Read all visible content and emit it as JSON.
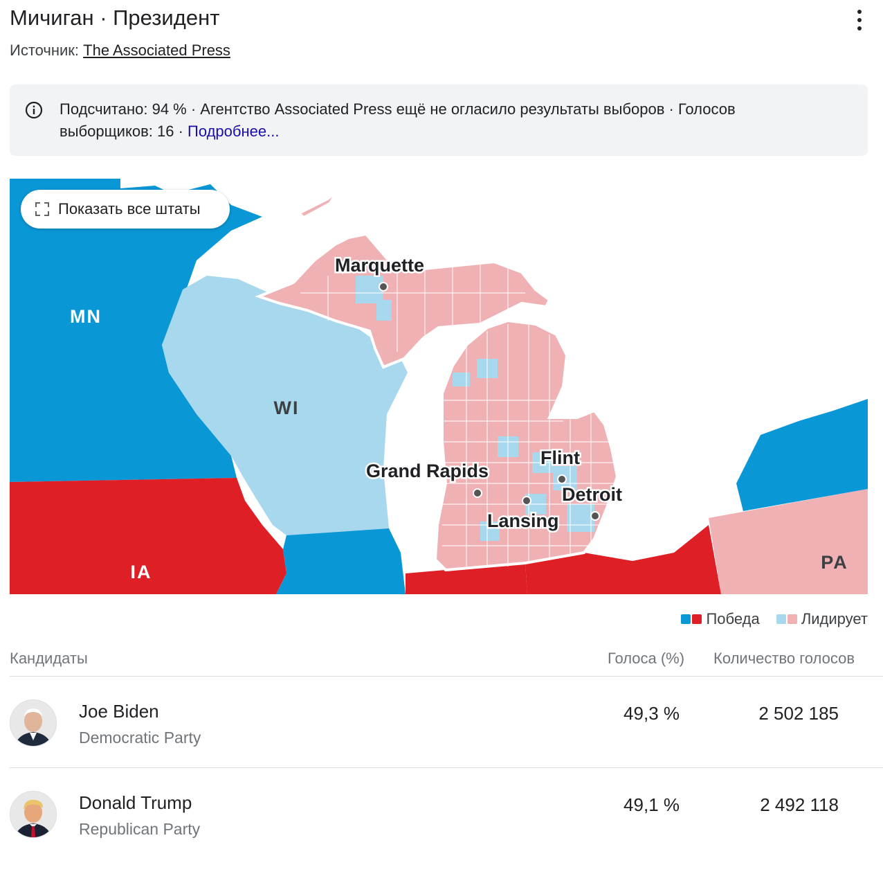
{
  "header": {
    "title": "Мичиган · Президент",
    "source_prefix": "Источник:",
    "source_name": "The Associated Press"
  },
  "notice": {
    "text": "Подсчитано: 94 % · Агентство Associated Press ещё не огласило результаты выборов · Голосов выборщиков: 16 ·",
    "link": "Подробнее..."
  },
  "map": {
    "show_all_label": "Показать все штаты",
    "states": {
      "mn": "MN",
      "wi": "WI",
      "ia": "IA",
      "pa": "PA"
    },
    "cities": {
      "marquette": "Marquette",
      "grand_rapids": "Grand Rapids",
      "flint": "Flint",
      "lansing": "Lansing",
      "detroit": "Detroit"
    },
    "colors": {
      "dem_win": "#0a97d6",
      "rep_win": "#de1f26",
      "dem_lead": "#a8d8ed",
      "rep_lead": "#f0b1b4"
    }
  },
  "legend": {
    "win": "Победа",
    "lead": "Лидирует"
  },
  "table": {
    "col_candidates": "Кандидаты",
    "col_pct": "Голоса (%)",
    "col_votes": "Количество голосов",
    "rows": [
      {
        "name": "Joe Biden",
        "party": "Democratic Party",
        "pct": "49,3 %",
        "votes": "2 502 185"
      },
      {
        "name": "Donald Trump",
        "party": "Republican Party",
        "pct": "49,1 %",
        "votes": "2 492 118"
      }
    ]
  }
}
